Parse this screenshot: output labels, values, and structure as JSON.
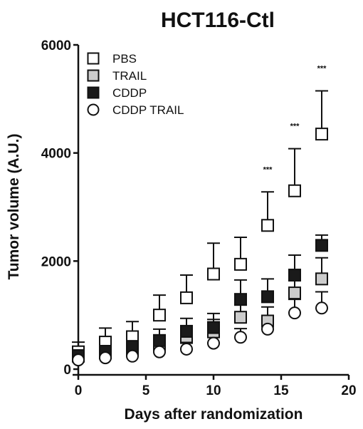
{
  "chart_data": {
    "type": "scatter",
    "title": "HCT116-Ctl",
    "xlabel": "Days after randomization",
    "ylabel": "Tumor volume (A.U.)",
    "xlim": [
      0,
      20
    ],
    "ylim": [
      0,
      6000
    ],
    "xticks": [
      "0",
      "5",
      "10",
      "15",
      "20"
    ],
    "yticks": [
      "0",
      "2000",
      "4000",
      "6000"
    ],
    "grid": false,
    "legend_position": "top-left",
    "error_bars": "upper",
    "series": [
      {
        "name": "PBS",
        "marker": "square",
        "fill": "#ffffff",
        "x": [
          0,
          2,
          4,
          6,
          8,
          10,
          12,
          14,
          16,
          18
        ],
        "y": [
          320,
          500,
          600,
          1000,
          1320,
          1760,
          1940,
          2660,
          3300,
          4350
        ],
        "err": [
          180,
          260,
          280,
          370,
          420,
          570,
          500,
          620,
          780,
          800
        ]
      },
      {
        "name": "TRAIL",
        "marker": "square",
        "fill": "#cccccc",
        "x": [
          0,
          2,
          4,
          6,
          8,
          10,
          12,
          14,
          16,
          18
        ],
        "y": [
          240,
          300,
          370,
          460,
          600,
          690,
          960,
          890,
          1410,
          1670
        ],
        "err": [
          80,
          110,
          150,
          170,
          200,
          230,
          280,
          260,
          380,
          390
        ]
      },
      {
        "name": "CDDP",
        "marker": "square",
        "fill": "#1a1a1a",
        "x": [
          0,
          2,
          4,
          6,
          8,
          10,
          12,
          14,
          16,
          18
        ],
        "y": [
          250,
          330,
          420,
          530,
          700,
          770,
          1290,
          1340,
          1740,
          2290
        ],
        "err": [
          90,
          130,
          170,
          210,
          240,
          260,
          360,
          330,
          370,
          190
        ]
      },
      {
        "name": "CDDP TRAIL",
        "marker": "circle",
        "fill": "#ffffff",
        "x": [
          0,
          2,
          4,
          6,
          8,
          10,
          12,
          14,
          16,
          18
        ],
        "y": [
          170,
          210,
          240,
          320,
          370,
          480,
          590,
          740,
          1040,
          1130
        ],
        "err": [
          50,
          60,
          70,
          90,
          110,
          130,
          160,
          200,
          250,
          300
        ]
      }
    ],
    "annotations": [
      {
        "x": 14,
        "y": 3280,
        "text": "***"
      },
      {
        "x": 16,
        "y": 4080,
        "text": "***"
      },
      {
        "x": 18,
        "y": 5150,
        "text": "***"
      }
    ]
  }
}
